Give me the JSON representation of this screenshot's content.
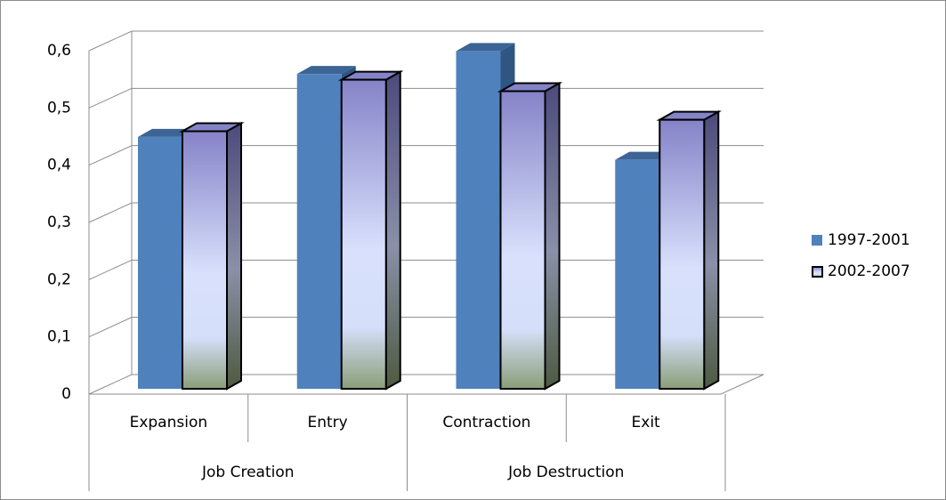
{
  "chart_data": {
    "type": "bar3d",
    "categories": [
      "Expansion",
      "Entry",
      "Contraction",
      "Exit"
    ],
    "groups": [
      {
        "label": "Job Creation",
        "span": 2
      },
      {
        "label": "Job Destruction",
        "span": 2
      }
    ],
    "series": [
      {
        "name": "1997-2001",
        "color": "#4f81bd",
        "values": [
          0.44,
          0.55,
          0.59,
          0.4
        ]
      },
      {
        "name": "2002-2007",
        "color": "#8583c8",
        "values": [
          0.45,
          0.54,
          0.52,
          0.47
        ]
      }
    ],
    "ylim": [
      0,
      0.6
    ],
    "yticks": [
      0,
      {
        "value": 0.1,
        "label": "0,1"
      },
      {
        "value": 0.2,
        "label": "0,2"
      },
      {
        "value": 0.3,
        "label": "0,3"
      },
      {
        "value": 0.4,
        "label": "0,4"
      },
      {
        "value": 0.5,
        "label": "0,5"
      },
      {
        "value": 0.6,
        "label": "0,6"
      }
    ],
    "grid": true,
    "legend": "right"
  }
}
